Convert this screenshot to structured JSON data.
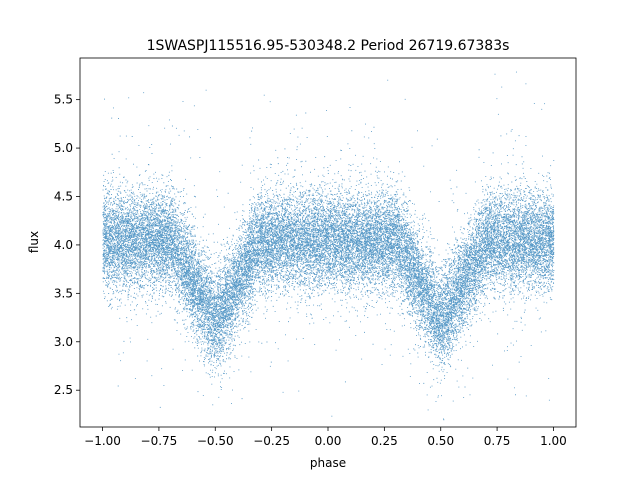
{
  "chart_data": {
    "type": "scatter",
    "title": "1SWASPJ115516.95-530348.2 Period 26719.67383s",
    "xlabel": "phase",
    "ylabel": "flux",
    "xlim": [
      -1.1,
      1.1
    ],
    "ylim": [
      2.12,
      5.93
    ],
    "x_ticks": [
      -1.0,
      -0.75,
      -0.5,
      -0.25,
      0.0,
      0.25,
      0.5,
      0.75,
      1.0
    ],
    "x_tick_labels": [
      "−1.00",
      "−0.75",
      "−0.50",
      "−0.25",
      "0.00",
      "0.25",
      "0.50",
      "0.75",
      "1.00"
    ],
    "y_ticks": [
      2.5,
      3.0,
      3.5,
      4.0,
      4.5,
      5.0,
      5.5
    ],
    "y_tick_labels": [
      "2.5",
      "3.0",
      "3.5",
      "4.0",
      "4.5",
      "5.0",
      "5.5"
    ],
    "grid": false,
    "marker_color": "#1f77b4",
    "series": [
      {
        "phase_range": [
          -1.0,
          1.0
        ],
        "baseline_flux": 4.05,
        "scatter_sigma": 0.25,
        "eclipses": [
          {
            "center_phase": -0.5,
            "min_flux": 3.2,
            "half_width": 0.2
          },
          {
            "center_phase": 0.5,
            "min_flux": 3.2,
            "half_width": 0.2
          }
        ],
        "point_count": 30000
      }
    ]
  }
}
